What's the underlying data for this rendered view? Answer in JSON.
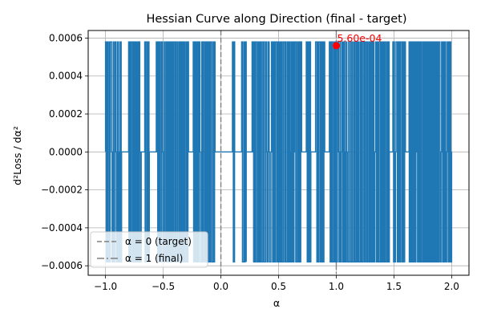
{
  "chart_data": {
    "type": "line",
    "title": "Hessian Curve along Direction (final - target)",
    "xlabel": "α",
    "ylabel": "d²Loss / dα²",
    "xlim": [
      -1.15,
      2.15
    ],
    "ylim": [
      -0.00065,
      0.00064
    ],
    "xticks": [
      -1.0,
      -0.5,
      0.0,
      0.5,
      1.0,
      1.5,
      2.0
    ],
    "xtick_labels": [
      "−1.0",
      "−0.5",
      "0.0",
      "0.5",
      "1.0",
      "1.5",
      "2.0"
    ],
    "yticks": [
      -0.0006,
      -0.0004,
      -0.0002,
      0.0,
      0.0002,
      0.0004,
      0.0006
    ],
    "ytick_labels": [
      "−0.0006",
      "−0.0004",
      "−0.0002",
      "0.0000",
      "0.0002",
      "0.0004",
      "0.0006"
    ],
    "grid": true,
    "legend_position": "lower-left",
    "series": [
      {
        "color": "#1f77b4",
        "x_range": [
          -1.0,
          2.0
        ],
        "high_value": 0.00058,
        "low_value": -0.00058,
        "segments": [
          {
            "x0": -1.0,
            "x1": -0.86,
            "state": "osc"
          },
          {
            "x0": -0.86,
            "x1": -0.8,
            "state": "zero"
          },
          {
            "x0": -0.8,
            "x1": -0.69,
            "state": "osc"
          },
          {
            "x0": -0.69,
            "x1": -0.66,
            "state": "zero"
          },
          {
            "x0": -0.66,
            "x1": -0.62,
            "state": "osc"
          },
          {
            "x0": -0.62,
            "x1": -0.56,
            "state": "zero"
          },
          {
            "x0": -0.56,
            "x1": -0.28,
            "state": "osc"
          },
          {
            "x0": -0.28,
            "x1": -0.24,
            "state": "zero"
          },
          {
            "x0": -0.24,
            "x1": -0.05,
            "state": "osc"
          },
          {
            "x0": -0.05,
            "x1": 0.1,
            "state": "zero"
          },
          {
            "x0": 0.1,
            "x1": 0.12,
            "state": "osc"
          },
          {
            "x0": 0.12,
            "x1": 0.18,
            "state": "zero"
          },
          {
            "x0": 0.18,
            "x1": 0.22,
            "state": "osc"
          },
          {
            "x0": 0.22,
            "x1": 0.27,
            "state": "zero"
          },
          {
            "x0": 0.27,
            "x1": 0.7,
            "state": "osc"
          },
          {
            "x0": 0.7,
            "x1": 0.74,
            "state": "zero"
          },
          {
            "x0": 0.74,
            "x1": 0.78,
            "state": "osc"
          },
          {
            "x0": 0.78,
            "x1": 0.82,
            "state": "zero"
          },
          {
            "x0": 0.82,
            "x1": 0.9,
            "state": "osc"
          },
          {
            "x0": 0.9,
            "x1": 0.94,
            "state": "zero"
          },
          {
            "x0": 0.94,
            "x1": 1.46,
            "state": "osc"
          },
          {
            "x0": 1.46,
            "x1": 1.49,
            "state": "zero"
          },
          {
            "x0": 1.49,
            "x1": 1.6,
            "state": "osc"
          },
          {
            "x0": 1.6,
            "x1": 1.63,
            "state": "zero"
          },
          {
            "x0": 1.63,
            "x1": 2.0,
            "state": "osc"
          }
        ]
      }
    ],
    "reference_lines": [
      {
        "x": 0.0,
        "label": "α = 0 (target)",
        "color": "#808080",
        "style": "dashed"
      },
      {
        "x": 1.0,
        "label": "α = 1 (final)",
        "color": "#808080",
        "style": "dashdot"
      }
    ],
    "annotations": [
      {
        "x": 1.0,
        "y": 0.00056,
        "text": "5.60e-04",
        "color": "#ff0000"
      }
    ]
  }
}
